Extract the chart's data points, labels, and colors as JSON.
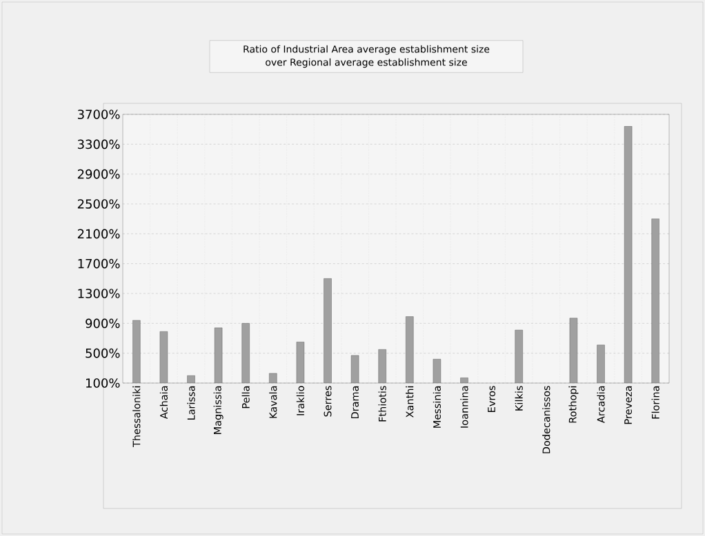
{
  "chart_data": {
    "type": "bar",
    "title": "Ratio of Industrial Area average establishment size\nover Regional average establishment size",
    "categories": [
      "Thessaloniki",
      "Achaia",
      "Larissa",
      "Magnissia",
      "Pella",
      "Kavala",
      "Iraklio",
      "Serres",
      "Drama",
      "Fthiotis",
      "Xanthi",
      "Messinia",
      "Ioannina",
      "Evros",
      "Kilkis",
      "Dodecanissos",
      "Rothopi",
      "Arcadia",
      "Preveza",
      "Florina"
    ],
    "values": [
      940,
      790,
      200,
      840,
      900,
      230,
      650,
      1500,
      470,
      550,
      990,
      420,
      170,
      null,
      810,
      null,
      970,
      610,
      3540,
      2300
    ],
    "color": "#a0a0a0",
    "ylim": [
      100,
      3700
    ],
    "yticks": [
      {
        "value": 100,
        "label": "100%"
      },
      {
        "value": 500,
        "label": "500%"
      },
      {
        "value": 900,
        "label": "900%"
      },
      {
        "value": 1300,
        "label": "1300%"
      },
      {
        "value": 1700,
        "label": "1700%"
      },
      {
        "value": 2100,
        "label": "2100%"
      },
      {
        "value": 2500,
        "label": "2500%"
      },
      {
        "value": 2900,
        "label": "2900%"
      },
      {
        "value": 3300,
        "label": "3300%"
      },
      {
        "value": 3700,
        "label": "3700%"
      }
    ],
    "grid": true
  }
}
